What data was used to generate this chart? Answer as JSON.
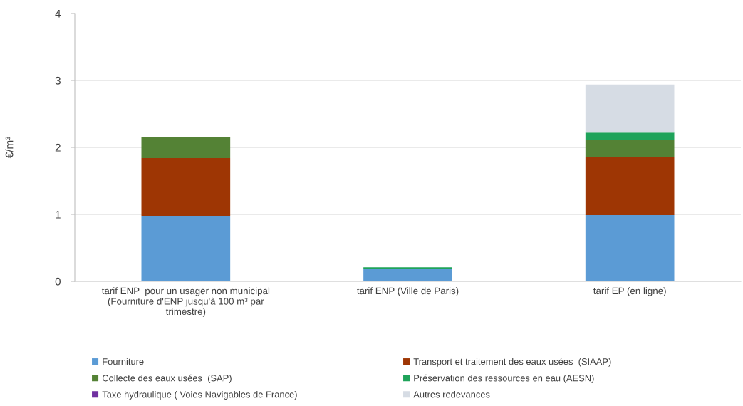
{
  "chart_data": {
    "type": "bar",
    "stacked": true,
    "categories": [
      "tarif ENP  pour un usager non municipal\n(Fourniture d'ENP jusqu'à 100 m³ par\ntrimestre)",
      "tarif ENP (Ville de Paris)",
      "tarif EP (en ligne)"
    ],
    "series": [
      {
        "name": "Fourniture",
        "color": "#5b9bd5",
        "values": [
          0.98,
          0.19,
          0.99
        ]
      },
      {
        "name": "Transport et traitement des eaux usées  (SIAAP)",
        "color": "#9e3604",
        "values": [
          0.86,
          null,
          0.86
        ]
      },
      {
        "name": "Collecte des eaux usées  (SAP)",
        "color": "#548235",
        "values": [
          0.32,
          null,
          0.26
        ]
      },
      {
        "name": "Préservation des ressources en eau (AESN)",
        "color": "#1fa35a",
        "values": [
          null,
          0.02,
          0.11
        ]
      },
      {
        "name": "Taxe hydraulique ( Voies Navigables de France)",
        "color": "#7030a0",
        "values": [
          null,
          null,
          null
        ]
      },
      {
        "name": "Autres redevances",
        "color": "#d6dce4",
        "values": [
          null,
          null,
          0.72
        ]
      }
    ],
    "ylabel": "€/m³",
    "ylim": [
      0,
      4
    ],
    "yticks": [
      0,
      1,
      2,
      3,
      4
    ],
    "grid": "y",
    "legend": "bottom"
  }
}
